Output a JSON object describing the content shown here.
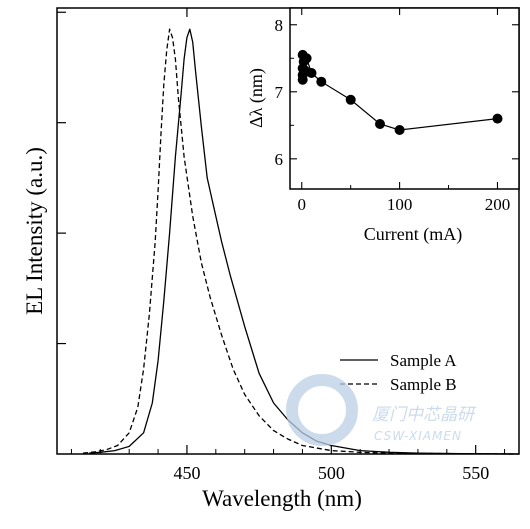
{
  "chart_data": [
    {
      "type": "line",
      "xlabel": "Wavelength (nm)",
      "ylabel": "EL Intensity (a.u.)",
      "xlim": [
        405,
        565
      ],
      "ylim": [
        0,
        1.05
      ],
      "x_ticks": [
        450,
        500,
        550
      ],
      "x_tick_labels": [
        "450",
        "500",
        "550"
      ],
      "y_tick_labels_shown": false,
      "grid": false,
      "legend_position": "lower-right",
      "series": [
        {
          "name": "Sample A",
          "style": "solid",
          "color": "#000000",
          "points": [
            [
              416,
              0.002
            ],
            [
              420,
              0.004
            ],
            [
              425,
              0.008
            ],
            [
              430,
              0.018
            ],
            [
              435,
              0.05
            ],
            [
              438,
              0.12
            ],
            [
              440,
              0.22
            ],
            [
              442,
              0.36
            ],
            [
              444,
              0.52
            ],
            [
              446,
              0.7
            ],
            [
              448,
              0.85
            ],
            [
              449,
              0.93
            ],
            [
              450,
              0.98
            ],
            [
              451,
              1.0
            ],
            [
              452,
              0.97
            ],
            [
              453,
              0.9
            ],
            [
              455,
              0.77
            ],
            [
              457,
              0.65
            ],
            [
              460,
              0.56
            ],
            [
              462,
              0.5
            ],
            [
              465,
              0.42
            ],
            [
              470,
              0.3
            ],
            [
              475,
              0.19
            ],
            [
              480,
              0.12
            ],
            [
              485,
              0.08
            ],
            [
              490,
              0.05
            ],
            [
              495,
              0.03
            ],
            [
              500,
              0.02
            ],
            [
              510,
              0.008
            ],
            [
              520,
              0.004
            ],
            [
              530,
              0.002
            ],
            [
              545,
              0.001
            ],
            [
              565,
              0.0
            ]
          ]
        },
        {
          "name": "Sample B",
          "style": "dashed",
          "color": "#000000",
          "points": [
            [
              414,
              0.002
            ],
            [
              418,
              0.005
            ],
            [
              422,
              0.01
            ],
            [
              426,
              0.02
            ],
            [
              430,
              0.05
            ],
            [
              433,
              0.11
            ],
            [
              435,
              0.2
            ],
            [
              437,
              0.33
            ],
            [
              439,
              0.5
            ],
            [
              440,
              0.62
            ],
            [
              441,
              0.75
            ],
            [
              442,
              0.87
            ],
            [
              443,
              0.95
            ],
            [
              444,
              1.0
            ],
            [
              445,
              0.98
            ],
            [
              446,
              0.93
            ],
            [
              447,
              0.84
            ],
            [
              449,
              0.7
            ],
            [
              452,
              0.56
            ],
            [
              455,
              0.45
            ],
            [
              458,
              0.37
            ],
            [
              462,
              0.28
            ],
            [
              466,
              0.2
            ],
            [
              470,
              0.14
            ],
            [
              475,
              0.09
            ],
            [
              480,
              0.055
            ],
            [
              485,
              0.035
            ],
            [
              490,
              0.02
            ],
            [
              500,
              0.008
            ],
            [
              510,
              0.004
            ],
            [
              520,
              0.002
            ],
            [
              565,
              0.0
            ]
          ]
        }
      ]
    },
    {
      "type": "scatter",
      "xlabel": "Current (mA)",
      "ylabel": "Δλ (nm)",
      "xlim": [
        -12,
        222
      ],
      "ylim": [
        5.55,
        8.25
      ],
      "x_ticks": [
        0,
        100,
        200
      ],
      "x_tick_labels": [
        "0",
        "100",
        "200"
      ],
      "y_ticks": [
        6,
        7,
        8
      ],
      "y_tick_labels": [
        "6",
        "7",
        "8"
      ],
      "grid": false,
      "series": [
        {
          "marker": "filled-circle",
          "connected": true,
          "color": "#000000",
          "points": [
            [
              1,
              7.55
            ],
            [
              1,
              7.35
            ],
            [
              1,
              7.25
            ],
            [
              1,
              7.18
            ],
            [
              2,
              7.45
            ],
            [
              3,
              7.32
            ],
            [
              5,
              7.5
            ],
            [
              10,
              7.28
            ],
            [
              20,
              7.15
            ],
            [
              50,
              6.88
            ],
            [
              80,
              6.52
            ],
            [
              100,
              6.43
            ],
            [
              200,
              6.6
            ]
          ]
        }
      ]
    }
  ],
  "watermark": {
    "line1": "厦门中芯晶研",
    "line2": "CSW-XIAMEN",
    "color": "#bcd0e6"
  }
}
